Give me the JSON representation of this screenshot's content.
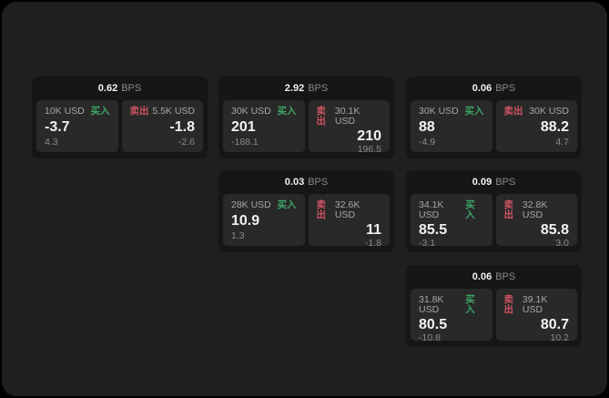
{
  "labels": {
    "bps": "BPS",
    "buy": "买入",
    "sell": "卖出"
  },
  "colors": {
    "page_bg": "#1f1f1f",
    "card_bg": "#161616",
    "panel_bg": "#292929",
    "buy": "#3da565",
    "sell": "#cd5361",
    "text_primary": "#f2f2f2",
    "text_secondary": "#a6a6a6",
    "text_muted": "#8a8a8a"
  },
  "cards": [
    {
      "bps": "0.62",
      "buy_amount": "10K USD",
      "buy_price": "-3.7",
      "buy_delta": "4.3",
      "sell_amount": "5.5K USD",
      "sell_price": "-1.8",
      "sell_delta": "-2.6"
    },
    {
      "bps": "2.92",
      "buy_amount": "30K USD",
      "buy_price": "201",
      "buy_delta": "-188.1",
      "sell_amount": "30.1K USD",
      "sell_price": "210",
      "sell_delta": "196.5"
    },
    {
      "bps": "0.06",
      "buy_amount": "30K USD",
      "buy_price": "88",
      "buy_delta": "-4.9",
      "sell_amount": "30K USD",
      "sell_price": "88.2",
      "sell_delta": "4.7"
    },
    {
      "bps": "0.03",
      "buy_amount": "28K USD",
      "buy_price": "10.9",
      "buy_delta": "1.3",
      "sell_amount": "32.6K USD",
      "sell_price": "11",
      "sell_delta": "-1.8"
    },
    {
      "bps": "0.09",
      "buy_amount": "34.1K USD",
      "buy_price": "85.5",
      "buy_delta": "-3.1",
      "sell_amount": "32.8K USD",
      "sell_price": "85.8",
      "sell_delta": "3.0"
    },
    {
      "bps": "0.06",
      "buy_amount": "31.8K USD",
      "buy_price": "80.5",
      "buy_delta": "-10.8",
      "sell_amount": "39.1K USD",
      "sell_price": "80.7",
      "sell_delta": "10.2"
    }
  ]
}
